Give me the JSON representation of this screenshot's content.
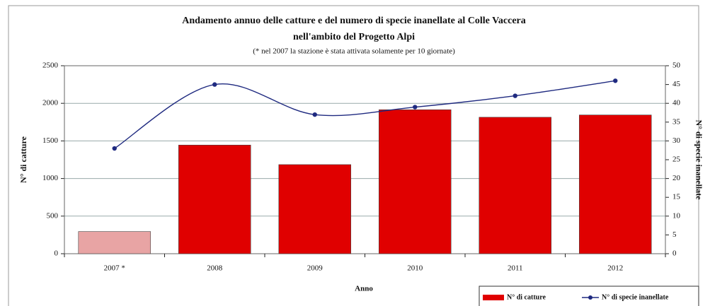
{
  "chart_data": {
    "type": "bar",
    "title": [
      "Andamento annuo delle catture e del numero di specie inanellate al Colle Vaccera",
      "nell'ambito del Progetto Alpi"
    ],
    "subtitle": "(* nel 2007 la stazione è stata attivata solamente per 10 giornate)",
    "x_label": "Anno",
    "y_label": "N° di catture",
    "y2_label": "N° di specie inanellate",
    "categories": [
      "2007 *",
      "2008",
      "2009",
      "2010",
      "2011",
      "2012"
    ],
    "series": [
      {
        "name": "N° di catture",
        "type": "bar",
        "color": "#e00000",
        "colors": [
          "#e8a4a4",
          "#e00000",
          "#e00000",
          "#e00000",
          "#e00000",
          "#e00000"
        ],
        "values": [
          295,
          1445,
          1185,
          1915,
          1815,
          1845
        ]
      },
      {
        "name": "N° di specie inanellate",
        "type": "line",
        "axis": "y2",
        "color": "#1f2a80",
        "values": [
          28,
          45,
          37,
          39,
          42,
          46
        ]
      }
    ],
    "ylim": [
      0,
      2500
    ],
    "yticks": [
      0,
      500,
      1000,
      1500,
      2000,
      2500
    ],
    "y2lim": [
      0,
      50
    ],
    "y2ticks": [
      0,
      5,
      10,
      15,
      20,
      25,
      30,
      35,
      40,
      45,
      50
    ],
    "grid": true,
    "legend": "bottom-right"
  }
}
